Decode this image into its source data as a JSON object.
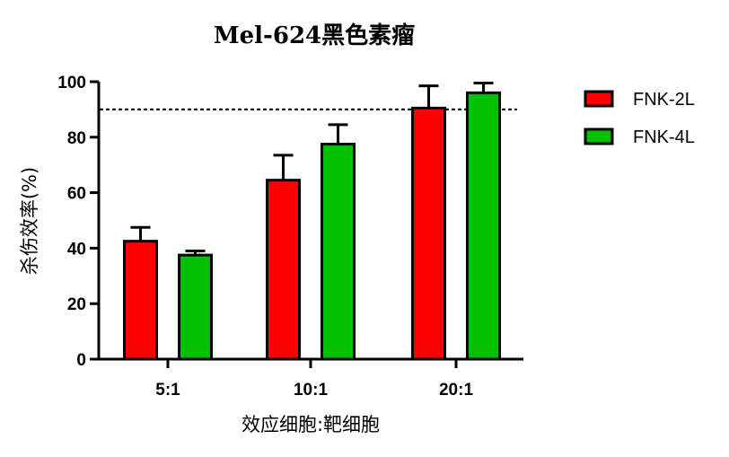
{
  "chart_data": {
    "type": "bar",
    "title": "Mel-624黑色素瘤",
    "xlabel": "效应细胞:靶细胞",
    "ylabel": "杀伤效率(%)",
    "categories": [
      "5:1",
      "10:1",
      "20:1"
    ],
    "ylim": [
      0,
      100
    ],
    "yticks": [
      "0",
      "20",
      "40",
      "60",
      "80",
      "100"
    ],
    "reference_line": {
      "y": 90,
      "style": "dotted"
    },
    "grid": false,
    "legend_position": "top-right",
    "series": [
      {
        "name": "FNK-2L",
        "color": "#ff0000",
        "values": [
          42.5,
          64.5,
          90.5
        ],
        "errors": [
          5,
          9,
          8
        ]
      },
      {
        "name": "FNK-4L",
        "color": "#00c000",
        "values": [
          37.5,
          77.5,
          96
        ],
        "errors": [
          1.5,
          7,
          3.5
        ]
      }
    ]
  }
}
